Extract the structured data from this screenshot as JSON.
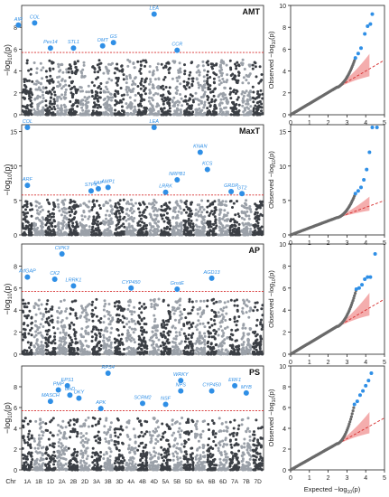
{
  "chart_data": [
    {
      "type": "scatter",
      "subtype": "manhattan",
      "title": "AMT",
      "ylabel": "−log10(p)",
      "ylim": [
        0,
        10
      ],
      "yticks": [
        0,
        2,
        4,
        6,
        8
      ],
      "threshold": 5.7,
      "colors": {
        "chr_a": "#3b3f45",
        "chr_b": "#9aa0a8",
        "highlight": "#2f8fe6",
        "threshold": "#d62c2c"
      },
      "highlights": [
        {
          "label": "AIR",
          "chr": "1A",
          "y": 8.2,
          "dx": -10
        },
        {
          "label": "COL",
          "chr": "1A",
          "y": 8.4,
          "dx": 8
        },
        {
          "label": "Pex14",
          "chr": "1D",
          "y": 6.1,
          "dx": 0
        },
        {
          "label": "STL1",
          "chr": "2B",
          "y": 6.1,
          "dx": 0
        },
        {
          "label": "OMT",
          "chr": "3B",
          "y": 6.3,
          "dx": -6
        },
        {
          "label": "GS",
          "chr": "3B",
          "y": 6.6,
          "dx": 6
        },
        {
          "label": "LEA",
          "chr": "4D",
          "y": 9.2,
          "dx": 0
        },
        {
          "label": "CCR",
          "chr": "5B",
          "y": 5.9,
          "dx": 0
        }
      ]
    },
    {
      "type": "scatter",
      "subtype": "manhattan",
      "title": "MaxT",
      "ylabel": "−log10(p)",
      "ylim": [
        0,
        16
      ],
      "yticks": [
        0,
        5,
        10,
        15
      ],
      "threshold": 5.8,
      "colors": {
        "chr_a": "#3b3f45",
        "chr_b": "#9aa0a8",
        "highlight": "#2f8fe6",
        "threshold": "#d62c2c"
      },
      "highlights": [
        {
          "label": "COL",
          "chr": "1A",
          "y": 15.6,
          "dx": 0
        },
        {
          "label": "ARF",
          "chr": "1A",
          "y": 7.2,
          "dx": 0
        },
        {
          "label": "STPK",
          "chr": "3A",
          "y": 6.4,
          "dx": -6
        },
        {
          "label": "FAP",
          "chr": "3A",
          "y": 6.7,
          "dx": 2
        },
        {
          "label": "AMP1",
          "chr": "3B",
          "y": 6.9,
          "dx": 0
        },
        {
          "label": "LEA",
          "chr": "4D",
          "y": 15.6,
          "dx": 0
        },
        {
          "label": "LRRK",
          "chr": "5A",
          "y": 6.2,
          "dx": 0
        },
        {
          "label": "NRPB1",
          "chr": "5B",
          "y": 8.0,
          "dx": 0
        },
        {
          "label": "KNAN",
          "chr": "6A",
          "y": 12.0,
          "dx": 0
        },
        {
          "label": "KCS",
          "chr": "6A",
          "y": 9.5,
          "dx": 8
        },
        {
          "label": "GRDP",
          "chr": "7A",
          "y": 6.3,
          "dx": -4
        },
        {
          "label": "GT2",
          "chr": "7A",
          "y": 6.0,
          "dx": 8
        }
      ]
    },
    {
      "type": "scatter",
      "subtype": "manhattan",
      "title": "AP",
      "ylabel": "−log10(p)",
      "ylim": [
        0,
        10
      ],
      "yticks": [
        0,
        2,
        4,
        6,
        8
      ],
      "threshold": 5.7,
      "colors": {
        "chr_a": "#3b3f45",
        "chr_b": "#9aa0a8",
        "highlight": "#2f8fe6",
        "threshold": "#d62c2c"
      },
      "highlights": [
        {
          "label": "ArfGAP",
          "chr": "1A",
          "y": 7.0,
          "dx": 0
        },
        {
          "label": "CIPK3",
          "chr": "2A",
          "y": 9.1,
          "dx": 0
        },
        {
          "label": "CK2",
          "chr": "2A",
          "y": 6.8,
          "dx": -8
        },
        {
          "label": "LRRK1",
          "chr": "2B",
          "y": 6.2,
          "dx": 0
        },
        {
          "label": "CYP450",
          "chr": "4A",
          "y": 6.0,
          "dx": 0
        },
        {
          "label": "GnstE",
          "chr": "5B",
          "y": 5.9,
          "dx": 0
        },
        {
          "label": "AGD13",
          "chr": "6B",
          "y": 6.9,
          "dx": 0
        }
      ]
    },
    {
      "type": "scatter",
      "subtype": "manhattan",
      "title": "PS",
      "ylabel": "−log10(p)",
      "ylim": [
        0,
        10
      ],
      "yticks": [
        0,
        2,
        4,
        6,
        8
      ],
      "threshold": 5.7,
      "colors": {
        "chr_a": "#3b3f45",
        "chr_b": "#9aa0a8",
        "highlight": "#2f8fe6",
        "threshold": "#d62c2c"
      },
      "highlights": [
        {
          "label": "MASCH",
          "chr": "1D",
          "y": 6.6,
          "dx": 0
        },
        {
          "label": "PMP",
          "chr": "2A",
          "y": 7.7,
          "dx": -4
        },
        {
          "label": "EPS1",
          "chr": "2A",
          "y": 8.1,
          "dx": 6
        },
        {
          "label": "GnD",
          "chr": "2B",
          "y": 7.2,
          "dx": -4
        },
        {
          "label": "OKY",
          "chr": "2B",
          "y": 6.9,
          "dx": 6
        },
        {
          "label": "APK",
          "chr": "3B",
          "y": 5.9,
          "dx": -8
        },
        {
          "label": "RPS4",
          "chr": "3B",
          "y": 9.3,
          "dx": 0
        },
        {
          "label": "SCRM2",
          "chr": "4B",
          "y": 6.4,
          "dx": 0
        },
        {
          "label": "NSF",
          "chr": "5A",
          "y": 6.3,
          "dx": 0
        },
        {
          "label": "WRKY",
          "chr": "5B",
          "y": 8.6,
          "dx": 4
        },
        {
          "label": "NPS",
          "chr": "5B",
          "y": 7.6,
          "dx": 4
        },
        {
          "label": "CYP450",
          "chr": "6B",
          "y": 7.6,
          "dx": 0
        },
        {
          "label": "ERF1",
          "chr": "7A",
          "y": 8.1,
          "dx": 0
        },
        {
          "label": "MYB",
          "chr": "7B",
          "y": 7.4,
          "dx": 0
        }
      ]
    },
    {
      "type": "scatter",
      "subtype": "qq",
      "ylabel": "Observed −log10(p)",
      "xlim": [
        0,
        5
      ],
      "ylim": [
        0,
        10
      ],
      "xticks": [
        0,
        1,
        2,
        3,
        4,
        5
      ],
      "yticks": [
        0,
        2,
        4,
        6,
        8,
        10
      ],
      "top_points": [
        [
          3.45,
          5.2
        ],
        [
          3.6,
          5.6
        ],
        [
          3.75,
          6.1
        ],
        [
          3.95,
          7.4
        ],
        [
          4.1,
          8.1
        ],
        [
          4.25,
          8.3
        ],
        [
          4.35,
          9.2
        ]
      ],
      "colors": {
        "points": "#6a6a6a",
        "top": "#2f8fe6",
        "band": "#f08a8a",
        "line": "#d62c2c"
      }
    },
    {
      "type": "scatter",
      "subtype": "qq",
      "ylabel": "Observed −log10(p)",
      "xlim": [
        0,
        5
      ],
      "ylim": [
        0,
        16
      ],
      "xticks": [
        0,
        1,
        2,
        3,
        4,
        5
      ],
      "yticks": [
        0,
        5,
        10,
        15
      ],
      "top_points": [
        [
          3.45,
          6.0
        ],
        [
          3.6,
          6.4
        ],
        [
          3.75,
          6.9
        ],
        [
          3.9,
          8.0
        ],
        [
          4.05,
          9.5
        ],
        [
          4.2,
          12.0
        ],
        [
          4.35,
          15.6
        ],
        [
          4.6,
          15.6
        ]
      ],
      "colors": {
        "points": "#6a6a6a",
        "top": "#2f8fe6",
        "band": "#f08a8a",
        "line": "#d62c2c"
      }
    },
    {
      "type": "scatter",
      "subtype": "qq",
      "ylabel": "Observed −log10(p)",
      "xlim": [
        0,
        5
      ],
      "ylim": [
        0,
        10
      ],
      "xticks": [
        0,
        1,
        2,
        3,
        4,
        5
      ],
      "yticks": [
        0,
        2,
        4,
        6,
        8,
        10
      ],
      "top_points": [
        [
          3.5,
          5.9
        ],
        [
          3.65,
          6.0
        ],
        [
          3.8,
          6.3
        ],
        [
          3.95,
          6.8
        ],
        [
          4.1,
          7.0
        ],
        [
          4.25,
          7.0
        ],
        [
          4.5,
          9.1
        ]
      ],
      "colors": {
        "points": "#6a6a6a",
        "top": "#2f8fe6",
        "band": "#f08a8a",
        "line": "#d62c2c"
      }
    },
    {
      "type": "scatter",
      "subtype": "qq",
      "xlabel": "Expected −log10(p)",
      "ylabel": "Observed −log10(p)",
      "xlim": [
        0,
        5
      ],
      "ylim": [
        0,
        10
      ],
      "xticks": [
        0,
        1,
        2,
        3,
        4,
        5
      ],
      "yticks": [
        0,
        2,
        4,
        6,
        8,
        10
      ],
      "top_points": [
        [
          3.4,
          6.3
        ],
        [
          3.55,
          6.6
        ],
        [
          3.7,
          7.2
        ],
        [
          3.85,
          7.6
        ],
        [
          4.0,
          8.1
        ],
        [
          4.15,
          8.6
        ],
        [
          4.3,
          9.3
        ]
      ],
      "colors": {
        "points": "#6a6a6a",
        "top": "#2f8fe6",
        "band": "#f08a8a",
        "line": "#d62c2c"
      }
    }
  ],
  "chromosomes": [
    "1A",
    "1B",
    "1D",
    "2A",
    "2B",
    "2D",
    "3A",
    "3B",
    "3D",
    "4A",
    "4B",
    "4D",
    "5A",
    "5B",
    "5D",
    "6A",
    "6B",
    "6D",
    "7A",
    "7B",
    "7D"
  ],
  "chr_axis_label": "Chr"
}
